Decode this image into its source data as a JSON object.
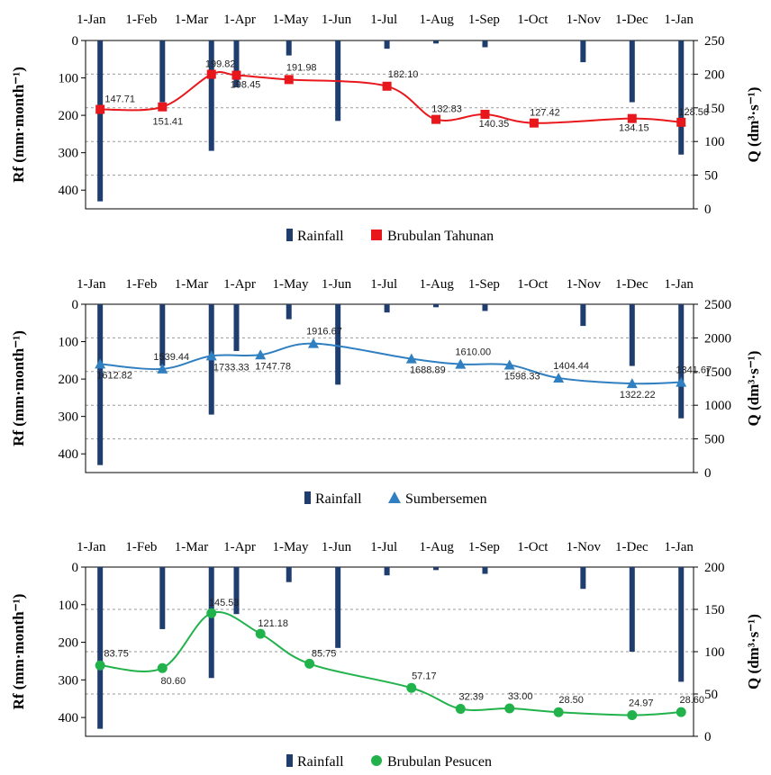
{
  "chart_data": [
    {
      "type": "bar+line",
      "x_tick_labels": [
        "1-Jan",
        "1-Feb",
        "1-Mar",
        "1-Apr",
        "1-May",
        "1-Jun",
        "1-Jul",
        "1-Aug",
        "1-Sep",
        "1-Oct",
        "1-Nov",
        "1-Dec",
        "1-Jan"
      ],
      "ylabel_left": "Rf (mm·month⁻¹)",
      "ylabel_right": "Q (dm³·s⁻¹)",
      "left_axis": {
        "min": 0,
        "max": 450,
        "reversed": true,
        "ticks": [
          0,
          100,
          200,
          300,
          400
        ]
      },
      "right_axis": {
        "min": 0,
        "max": 250,
        "ticks": [
          0,
          50,
          100,
          150,
          200,
          250
        ]
      },
      "legend": [
        "Rainfall",
        "Brubulan Tahunan"
      ],
      "rainfall": {
        "name": "Rainfall",
        "color": "#1f3e6e",
        "x": [
          0.15,
          1.42,
          2.42,
          2.93,
          4.0,
          5.0,
          6.0,
          7.0,
          8.0,
          9.0,
          10.0,
          11.0,
          12.0
        ],
        "values": [
          430,
          165,
          295,
          125,
          40,
          215,
          22,
          8,
          18,
          0,
          58,
          165,
          305
        ]
      },
      "series": {
        "name": "Brubulan Tahunan",
        "color": "#e8171c",
        "marker": "square",
        "x": [
          0.15,
          1.42,
          2.42,
          2.93,
          4.0,
          6.0,
          7.0,
          8.0,
          9.0,
          11.0,
          12.0
        ],
        "values": [
          147.71,
          151.41,
          199.82,
          198.45,
          191.98,
          182.1,
          132.83,
          140.35,
          127.42,
          134.15,
          128.56
        ],
        "labels": [
          "147.71",
          "151.41",
          "199.82",
          "198.45",
          "191.98",
          "182.10",
          "132.83",
          "140.35",
          "127.42",
          "134.15",
          "128.56"
        ]
      }
    },
    {
      "type": "bar+line",
      "x_tick_labels": [
        "1-Jan",
        "1-Feb",
        "1-Mar",
        "1-Apr",
        "1-May",
        "1-Jun",
        "1-Jul",
        "1-Aug",
        "1-Sep",
        "1-Oct",
        "1-Nov",
        "1-Dec",
        "1-Jan"
      ],
      "ylabel_left": "Rf (mm·month⁻¹)",
      "ylabel_right": "Q (dm³·s⁻¹)",
      "left_axis": {
        "min": 0,
        "max": 450,
        "reversed": true,
        "ticks": [
          0,
          100,
          200,
          300,
          400
        ]
      },
      "right_axis": {
        "min": 0,
        "max": 2500,
        "ticks": [
          0,
          500,
          1000,
          1500,
          2000,
          2500
        ]
      },
      "legend": [
        "Rainfall",
        "Sumbersemen"
      ],
      "rainfall": {
        "name": "Rainfall",
        "color": "#1f3e6e",
        "x": [
          0.15,
          1.42,
          2.42,
          2.93,
          4.0,
          5.0,
          6.0,
          7.0,
          8.0,
          9.0,
          10.0,
          11.0,
          12.0
        ],
        "values": [
          430,
          165,
          295,
          125,
          40,
          215,
          22,
          8,
          18,
          0,
          58,
          165,
          305
        ]
      },
      "series": {
        "name": "Sumbersemen",
        "color": "#2f7fc1",
        "marker": "triangle",
        "x": [
          0.15,
          1.42,
          2.42,
          3.42,
          4.5,
          6.5,
          7.5,
          8.5,
          9.5,
          11.0,
          12.0
        ],
        "values": [
          1612.82,
          1539.44,
          1733.33,
          1747.78,
          1916.67,
          1688.89,
          1610.0,
          1598.33,
          1404.44,
          1322.22,
          1341.67
        ],
        "labels": [
          "1612.82",
          "1539.44",
          "1733.33",
          "1747.78",
          "1916.67",
          "1688.89",
          "1610.00",
          "1598.33",
          "1404.44",
          "1322.22",
          "1341.67"
        ]
      }
    },
    {
      "type": "bar+line",
      "x_tick_labels": [
        "1-Jan",
        "1-Feb",
        "1-Mar",
        "1-Apr",
        "1-May",
        "1-Jun",
        "1-Jul",
        "1-Aug",
        "1-Sep",
        "1-Oct",
        "1-Nov",
        "1-Dec",
        "1-Jan"
      ],
      "ylabel_left": "Rf (mm·month⁻¹)",
      "ylabel_right": "Q (dm³·s⁻¹)",
      "left_axis": {
        "min": 0,
        "max": 450,
        "reversed": true,
        "ticks": [
          0,
          100,
          200,
          300,
          400
        ]
      },
      "right_axis": {
        "min": 0,
        "max": 200,
        "ticks": [
          0,
          50,
          100,
          150,
          200
        ]
      },
      "legend": [
        "Rainfall",
        "Brubulan Pesucen"
      ],
      "rainfall": {
        "name": "Rainfall",
        "color": "#1f3e6e",
        "x": [
          0.15,
          1.42,
          2.42,
          2.93,
          4.0,
          5.0,
          6.0,
          7.0,
          8.0,
          9.0,
          10.0,
          11.0,
          12.0
        ],
        "values": [
          430,
          165,
          295,
          125,
          40,
          215,
          22,
          8,
          18,
          0,
          58,
          225,
          305
        ]
      },
      "series": {
        "name": "Brubulan Pesucen",
        "color": "#22b24c",
        "marker": "circle",
        "x": [
          0.15,
          1.42,
          2.42,
          3.42,
          4.42,
          6.5,
          7.5,
          8.5,
          9.5,
          11.0,
          12.0
        ],
        "values": [
          83.75,
          80.6,
          145.53,
          121.18,
          85.75,
          57.17,
          32.39,
          33.0,
          28.5,
          24.97,
          28.6
        ],
        "labels": [
          "83.75",
          "80.60",
          "145.53",
          "121.18",
          "85.75",
          "57.17",
          "32.39",
          "33.00",
          "28.50",
          "24.97",
          "28.60"
        ]
      }
    }
  ]
}
